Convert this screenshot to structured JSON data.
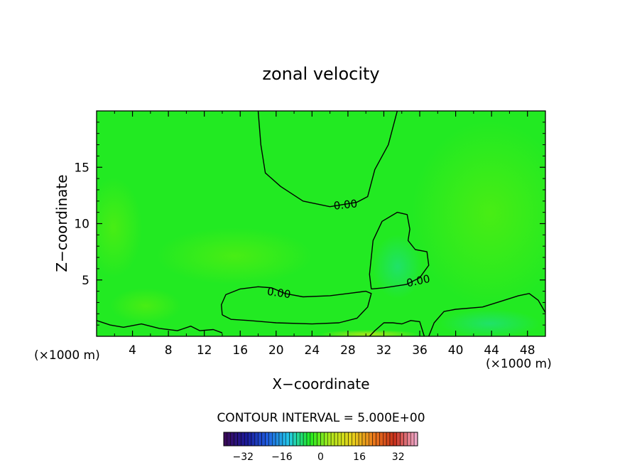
{
  "chart_data": {
    "type": "contour",
    "title": "zonal velocity",
    "xlabel": "X−coordinate",
    "ylabel": "Z−coordinate",
    "x_unit_label": "(×1000 m)",
    "y_unit_label": "(×1000 m)",
    "xlim": [
      0,
      50
    ],
    "ylim": [
      0,
      20
    ],
    "x_ticks": [
      4,
      8,
      12,
      16,
      20,
      24,
      28,
      32,
      36,
      40,
      44,
      48
    ],
    "y_ticks": [
      5,
      10,
      15
    ],
    "x_tick_labels": [
      "4",
      "8",
      "12",
      "16",
      "20",
      "24",
      "28",
      "32",
      "36",
      "40",
      "44",
      "48"
    ],
    "y_tick_labels": [
      "5",
      "10",
      "15"
    ],
    "contour_interval_text": "CONTOUR INTERVAL = 5.000E+00",
    "contour_labels": [
      "0.00",
      "0.00",
      "0.00"
    ],
    "zero_contours": [
      {
        "name": "upper",
        "points": [
          [
            18,
            20
          ],
          [
            18.3,
            17
          ],
          [
            18.8,
            14.5
          ],
          [
            20.5,
            13.3
          ],
          [
            23,
            12
          ],
          [
            26,
            11.5
          ],
          [
            29,
            11.9
          ],
          [
            30.2,
            12.4
          ],
          [
            31,
            14.8
          ],
          [
            32.5,
            17
          ],
          [
            33.5,
            20
          ]
        ]
      },
      {
        "name": "middle-left",
        "points": [
          [
            14,
            1.9
          ],
          [
            13.9,
            2.8
          ],
          [
            14.4,
            3.7
          ],
          [
            16,
            4.2
          ],
          [
            18,
            4.4
          ],
          [
            19.5,
            4.3
          ],
          [
            21,
            3.8
          ],
          [
            23,
            3.5
          ],
          [
            26,
            3.6
          ],
          [
            28,
            3.8
          ],
          [
            30,
            4.0
          ],
          [
            30.6,
            3.8
          ],
          [
            30.2,
            2.6
          ],
          [
            29,
            1.6
          ],
          [
            27,
            1.2
          ],
          [
            24,
            1.1
          ],
          [
            20,
            1.2
          ],
          [
            17,
            1.4
          ],
          [
            15,
            1.5
          ],
          [
            14,
            1.9
          ]
        ]
      },
      {
        "name": "middle-right",
        "points": [
          [
            30.6,
            4.2
          ],
          [
            32,
            4.3
          ],
          [
            34.5,
            4.6
          ],
          [
            36,
            5.2
          ],
          [
            37,
            6.3
          ],
          [
            36.8,
            7.5
          ],
          [
            35.5,
            7.7
          ],
          [
            34.7,
            8.5
          ],
          [
            34.9,
            9.5
          ],
          [
            34.6,
            10.8
          ],
          [
            33.5,
            11
          ],
          [
            31.8,
            10.2
          ],
          [
            30.8,
            8.5
          ],
          [
            30.6,
            7
          ],
          [
            30.4,
            5.5
          ],
          [
            30.6,
            4.2
          ]
        ]
      },
      {
        "name": "lower-right",
        "points": [
          [
            37,
            0
          ],
          [
            37.6,
            1.2
          ],
          [
            38.7,
            2.2
          ],
          [
            40,
            2.4
          ],
          [
            43,
            2.6
          ],
          [
            45,
            3.1
          ],
          [
            47,
            3.6
          ],
          [
            48.2,
            3.8
          ],
          [
            49.2,
            3.2
          ],
          [
            50,
            2.1
          ]
        ]
      },
      {
        "name": "surface-left",
        "points": [
          [
            0,
            1.4
          ],
          [
            1.5,
            1.0
          ],
          [
            3,
            0.8
          ],
          [
            5,
            1.1
          ],
          [
            7,
            0.7
          ],
          [
            9,
            0.5
          ],
          [
            10.5,
            0.9
          ],
          [
            11.5,
            0.5
          ],
          [
            13,
            0.6
          ],
          [
            14,
            0.3
          ]
        ]
      },
      {
        "name": "surface-right",
        "points": [
          [
            30.4,
            0
          ],
          [
            31,
            0.5
          ],
          [
            32,
            1.2
          ],
          [
            33,
            1.2
          ],
          [
            34,
            1.1
          ],
          [
            35,
            1.4
          ],
          [
            36,
            1.3
          ],
          [
            36.5,
            0
          ]
        ]
      }
    ],
    "colorbar": {
      "range": [
        -40,
        40
      ],
      "ticks": [
        -32,
        -16,
        0,
        16,
        32
      ],
      "tick_labels": [
        "−32",
        "−16",
        "0",
        "16",
        "32"
      ]
    },
    "colors": {
      "field_background": "#22ea22",
      "colorbar_stops": [
        "#3a0a5a",
        "#1a1a9a",
        "#1f5fe0",
        "#23c8e8",
        "#22ea22",
        "#b4e81c",
        "#e8d21c",
        "#ea7a1c",
        "#c8301c",
        "#f0a8c8"
      ]
    }
  }
}
